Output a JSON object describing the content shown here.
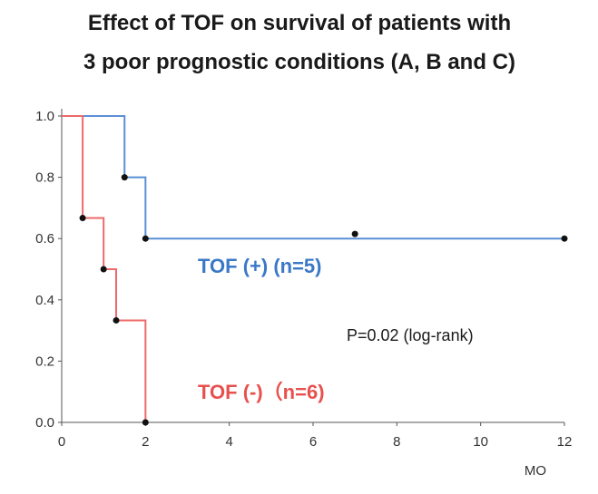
{
  "chart_data": {
    "type": "line",
    "subtype": "kaplan-meier step",
    "title_lines": [
      "Effect of TOF on survival of patients with",
      "3 poor prognostic conditions (A, B and C)"
    ],
    "xlabel": "MO",
    "ylabel": "",
    "xlim": [
      0,
      12
    ],
    "ylim": [
      0,
      1.0
    ],
    "x_ticks": [
      0,
      2,
      4,
      6,
      8,
      10,
      12
    ],
    "y_ticks": [
      0.0,
      0.2,
      0.4,
      0.6,
      0.8,
      1.0
    ],
    "x_tick_labels": [
      "0",
      "2",
      "4",
      "6",
      "8",
      "10",
      "12"
    ],
    "y_tick_labels": [
      "0.0",
      "0.2",
      "0.4",
      "0.6",
      "0.8",
      "1.0"
    ],
    "grid": false,
    "series": [
      {
        "name": "TOF (+) (n=5)",
        "color": "#5b8fd6",
        "label_color": "#3a78c8",
        "steps": [
          [
            0,
            1.0
          ],
          [
            1.5,
            0.8
          ],
          [
            2,
            0.6
          ],
          [
            12,
            0.6
          ]
        ],
        "markers": [
          [
            1.5,
            0.8
          ],
          [
            2,
            0.6
          ],
          [
            7,
            0.615
          ],
          [
            12,
            0.6
          ]
        ]
      },
      {
        "name": "TOF (-)（n=6)",
        "color": "#ee6a6a",
        "label_color": "#e8504e",
        "steps": [
          [
            0,
            1.0
          ],
          [
            0.5,
            0.667
          ],
          [
            1,
            0.5
          ],
          [
            1.3,
            0.333
          ],
          [
            2,
            0.0
          ]
        ],
        "markers": [
          [
            0.5,
            0.667
          ],
          [
            1,
            0.5
          ],
          [
            1.3,
            0.333
          ],
          [
            2,
            0.0
          ]
        ]
      }
    ],
    "annotation": "P=0.02 (log-rank)"
  }
}
